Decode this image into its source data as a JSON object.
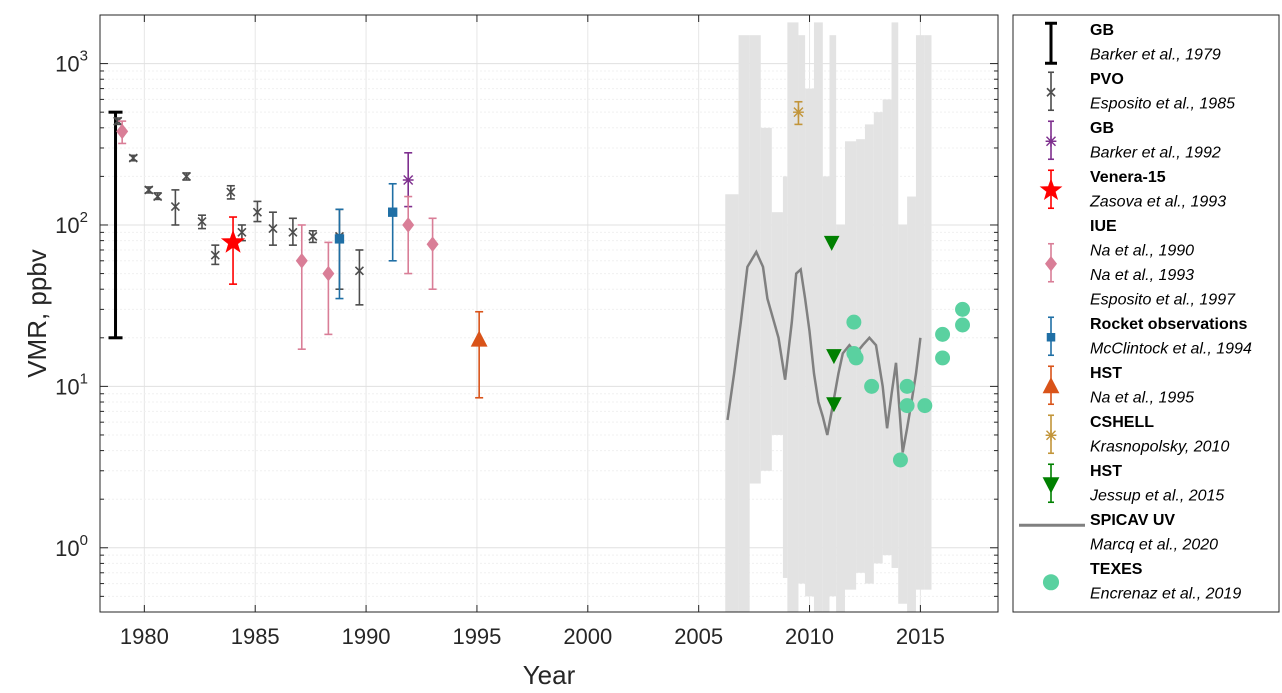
{
  "chart_data": {
    "type": "scatter",
    "xlabel": "Year",
    "ylabel": "VMR, ppbv",
    "xlim": [
      1978,
      2018.5
    ],
    "ylim": [
      0.4,
      2000
    ],
    "y_scale": "log",
    "grid": true,
    "legend_position": "outside-right",
    "x_ticks": [
      1980,
      1985,
      1990,
      1995,
      2000,
      2005,
      2010,
      2015
    ],
    "x_tick_labels": [
      "1980",
      "1985",
      "1990",
      "1995",
      "2000",
      "2005",
      "2010",
      "2015"
    ],
    "y_ticks": [
      {
        "value": 1,
        "base": "10",
        "exp": "0"
      },
      {
        "value": 10,
        "base": "10",
        "exp": "1"
      },
      {
        "value": 100,
        "base": "10",
        "exp": "2"
      },
      {
        "value": 1000,
        "base": "10",
        "exp": "3"
      }
    ],
    "series": [
      {
        "name": "GB",
        "reference": "Barker et al., 1979",
        "marker": "none",
        "color": "#000000",
        "points": [
          {
            "x": 1978.7,
            "y": 100,
            "lo": 20,
            "hi": 500
          }
        ]
      },
      {
        "name": "PVO",
        "reference": "Esposito et al., 1985",
        "marker": "x",
        "color": "#4d4d4d",
        "points": [
          {
            "x": 1978.8,
            "y": 440,
            "lo": 420,
            "hi": 460
          },
          {
            "x": 1979.5,
            "y": 260,
            "lo": 250,
            "hi": 270
          },
          {
            "x": 1980.2,
            "y": 165,
            "lo": 158,
            "hi": 172
          },
          {
            "x": 1980.6,
            "y": 150,
            "lo": 144,
            "hi": 158
          },
          {
            "x": 1981.4,
            "y": 130,
            "lo": 100,
            "hi": 165
          },
          {
            "x": 1981.9,
            "y": 200,
            "lo": 190,
            "hi": 210
          },
          {
            "x": 1982.6,
            "y": 105,
            "lo": 95,
            "hi": 115
          },
          {
            "x": 1983.2,
            "y": 65,
            "lo": 57,
            "hi": 75
          },
          {
            "x": 1983.9,
            "y": 160,
            "lo": 145,
            "hi": 175
          },
          {
            "x": 1984.4,
            "y": 90,
            "lo": 80,
            "hi": 100
          },
          {
            "x": 1985.1,
            "y": 120,
            "lo": 105,
            "hi": 140
          },
          {
            "x": 1985.8,
            "y": 95,
            "lo": 75,
            "hi": 120
          },
          {
            "x": 1986.7,
            "y": 90,
            "lo": 75,
            "hi": 110
          },
          {
            "x": 1987.6,
            "y": 85,
            "lo": 78,
            "hi": 92
          },
          {
            "x": 1988.8,
            "y": 85,
            "lo": 40,
            "hi": 125
          },
          {
            "x": 1989.7,
            "y": 52,
            "lo": 32,
            "hi": 70
          }
        ]
      },
      {
        "name": "GB",
        "reference": "Barker et al., 1992",
        "marker": "asterisk",
        "color": "#7e2f8e",
        "points": [
          {
            "x": 1991.9,
            "y": 190,
            "lo": 130,
            "hi": 280
          }
        ]
      },
      {
        "name": "Venera-15",
        "reference": "Zasova et al., 1993",
        "marker": "star",
        "color": "#ff0000",
        "points": [
          {
            "x": 1984.0,
            "y": 78,
            "lo": 43,
            "hi": 112
          }
        ]
      },
      {
        "name": "IUE",
        "references": [
          "Na et al., 1990",
          "Na et al., 1993",
          "Esposito et al., 1997"
        ],
        "marker": "diamond",
        "color": "#d97e97",
        "points": [
          {
            "x": 1979.0,
            "y": 380,
            "lo": 320,
            "hi": 440
          },
          {
            "x": 1987.1,
            "y": 60,
            "lo": 17,
            "hi": 100
          },
          {
            "x": 1988.3,
            "y": 50,
            "lo": 21,
            "hi": 78
          },
          {
            "x": 1991.9,
            "y": 100,
            "lo": 50,
            "hi": 150
          },
          {
            "x": 1993.0,
            "y": 76,
            "lo": 40,
            "hi": 110
          }
        ]
      },
      {
        "name": "Rocket observations",
        "reference": "McClintock et al., 1994",
        "marker": "square",
        "color": "#1f6fa5",
        "points": [
          {
            "x": 1988.8,
            "y": 82,
            "lo": 35,
            "hi": 125
          },
          {
            "x": 1991.2,
            "y": 120,
            "lo": 60,
            "hi": 180
          }
        ]
      },
      {
        "name": "HST",
        "reference": "Na et al., 1995",
        "marker": "triangle-up",
        "color": "#d95319",
        "points": [
          {
            "x": 1995.1,
            "y": 19.5,
            "lo": 8.5,
            "hi": 29
          }
        ]
      },
      {
        "name": "CSHELL",
        "reference": "Krasnopolsky, 2010",
        "marker": "asterisk",
        "color": "#c2953a",
        "points": [
          {
            "x": 2009.5,
            "y": 500,
            "lo": 420,
            "hi": 580
          }
        ]
      },
      {
        "name": "HST",
        "reference": "Jessup et al., 2015",
        "marker": "triangle-down",
        "color": "#008000",
        "points": [
          {
            "x": 2011.0,
            "y": 78
          },
          {
            "x": 2011.1,
            "y": 15.5
          },
          {
            "x": 2011.1,
            "y": 7.8
          }
        ]
      },
      {
        "name": "SPICAV UV",
        "reference": "Marcq et al., 2020",
        "marker": "line",
        "color": "#808080",
        "band_color": "#e3e3e3",
        "points": [
          {
            "x": 2006.3,
            "y": 6.2
          },
          {
            "x": 2006.6,
            "y": 12
          },
          {
            "x": 2006.9,
            "y": 25
          },
          {
            "x": 2007.2,
            "y": 55
          },
          {
            "x": 2007.6,
            "y": 68
          },
          {
            "x": 2007.9,
            "y": 55
          },
          {
            "x": 2008.1,
            "y": 35
          },
          {
            "x": 2008.4,
            "y": 25
          },
          {
            "x": 2008.6,
            "y": 20
          },
          {
            "x": 2008.9,
            "y": 11
          },
          {
            "x": 2009.2,
            "y": 25
          },
          {
            "x": 2009.4,
            "y": 50
          },
          {
            "x": 2009.6,
            "y": 53
          },
          {
            "x": 2009.8,
            "y": 35
          },
          {
            "x": 2010.0,
            "y": 22
          },
          {
            "x": 2010.2,
            "y": 12
          },
          {
            "x": 2010.4,
            "y": 8
          },
          {
            "x": 2010.6,
            "y": 6.5
          },
          {
            "x": 2010.8,
            "y": 5
          },
          {
            "x": 2011.0,
            "y": 7
          },
          {
            "x": 2011.3,
            "y": 12
          },
          {
            "x": 2011.5,
            "y": 16
          },
          {
            "x": 2011.8,
            "y": 18
          },
          {
            "x": 2012.1,
            "y": 16
          },
          {
            "x": 2012.4,
            "y": 18
          },
          {
            "x": 2012.7,
            "y": 20
          },
          {
            "x": 2013.0,
            "y": 18
          },
          {
            "x": 2013.3,
            "y": 10
          },
          {
            "x": 2013.5,
            "y": 5.5
          },
          {
            "x": 2013.7,
            "y": 9
          },
          {
            "x": 2013.9,
            "y": 14
          },
          {
            "x": 2014.1,
            "y": 6
          },
          {
            "x": 2014.2,
            "y": 3.9
          },
          {
            "x": 2014.4,
            "y": 5.5
          },
          {
            "x": 2014.6,
            "y": 8
          },
          {
            "x": 2014.8,
            "y": 12
          },
          {
            "x": 2015.0,
            "y": 20
          }
        ],
        "band": [
          {
            "x": 2006.2,
            "lo": 0.3,
            "hi": 155
          },
          {
            "x": 2006.8,
            "lo": 0.35,
            "hi": 1500
          },
          {
            "x": 2007.3,
            "lo": 2.5,
            "hi": 1500
          },
          {
            "x": 2007.8,
            "lo": 3,
            "hi": 400
          },
          {
            "x": 2008.3,
            "lo": 5,
            "hi": 120
          },
          {
            "x": 2008.8,
            "lo": 0.65,
            "hi": 200
          },
          {
            "x": 2009.0,
            "lo": 0.3,
            "hi": 1800
          },
          {
            "x": 2009.5,
            "lo": 0.6,
            "hi": 1500
          },
          {
            "x": 2009.8,
            "lo": 0.5,
            "hi": 700
          },
          {
            "x": 2010.2,
            "lo": 0.4,
            "hi": 1800
          },
          {
            "x": 2010.6,
            "lo": 0.3,
            "hi": 200
          },
          {
            "x": 2010.9,
            "lo": 0.5,
            "hi": 1500
          },
          {
            "x": 2011.2,
            "lo": 0.3,
            "hi": 100
          },
          {
            "x": 2011.6,
            "lo": 0.55,
            "hi": 330
          },
          {
            "x": 2012.1,
            "lo": 0.7,
            "hi": 340
          },
          {
            "x": 2012.5,
            "lo": 0.6,
            "hi": 420
          },
          {
            "x": 2012.9,
            "lo": 0.8,
            "hi": 500
          },
          {
            "x": 2013.3,
            "lo": 0.9,
            "hi": 600
          },
          {
            "x": 2013.7,
            "lo": 0.75,
            "hi": 1800
          },
          {
            "x": 2014.0,
            "lo": 0.45,
            "hi": 100
          },
          {
            "x": 2014.4,
            "lo": 0.3,
            "hi": 150
          },
          {
            "x": 2014.8,
            "lo": 0.55,
            "hi": 1500
          },
          {
            "x": 2015.2,
            "lo": 0.55,
            "hi": 1500
          }
        ]
      },
      {
        "name": "TEXES",
        "reference": "Encrenaz et al., 2019",
        "marker": "circle",
        "color": "#5ad1a0",
        "points": [
          {
            "x": 2012.0,
            "y": 25
          },
          {
            "x": 2012.0,
            "y": 16
          },
          {
            "x": 2012.1,
            "y": 15
          },
          {
            "x": 2012.8,
            "y": 10
          },
          {
            "x": 2014.1,
            "y": 3.5
          },
          {
            "x": 2014.4,
            "y": 10
          },
          {
            "x": 2014.4,
            "y": 7.6
          },
          {
            "x": 2015.2,
            "y": 7.6
          },
          {
            "x": 2016.0,
            "y": 21
          },
          {
            "x": 2016.0,
            "y": 15
          },
          {
            "x": 2016.9,
            "y": 30
          },
          {
            "x": 2016.9,
            "y": 24
          }
        ]
      }
    ],
    "legend": [
      {
        "name": "GB",
        "refs": [
          "Barker et al., 1979"
        ],
        "marker": "errorbar",
        "color": "#000000"
      },
      {
        "name": "PVO",
        "refs": [
          "Esposito et al., 1985"
        ],
        "marker": "x",
        "color": "#4d4d4d"
      },
      {
        "name": "GB",
        "refs": [
          "Barker et al., 1992"
        ],
        "marker": "asterisk",
        "color": "#7e2f8e"
      },
      {
        "name": "Venera-15",
        "refs": [
          "Zasova et al., 1993"
        ],
        "marker": "star",
        "color": "#ff0000"
      },
      {
        "name": "IUE",
        "refs": [
          "Na et al., 1990",
          "Na et al., 1993",
          "Esposito et al., 1997"
        ],
        "marker": "diamond",
        "color": "#d97e97"
      },
      {
        "name": "Rocket observations",
        "refs": [
          "McClintock et al., 1994"
        ],
        "marker": "square",
        "color": "#1f6fa5"
      },
      {
        "name": "HST",
        "refs": [
          "Na et al., 1995"
        ],
        "marker": "triangle-up",
        "color": "#d95319"
      },
      {
        "name": "CSHELL",
        "refs": [
          "Krasnopolsky, 2010"
        ],
        "marker": "asterisk",
        "color": "#c2953a"
      },
      {
        "name": "HST",
        "refs": [
          "Jessup et al., 2015"
        ],
        "marker": "triangle-down",
        "color": "#008000"
      },
      {
        "name": "SPICAV UV",
        "refs": [
          "Marcq et al., 2020"
        ],
        "marker": "line",
        "color": "#808080"
      },
      {
        "name": "TEXES",
        "refs": [
          "Encrenaz et al., 2019"
        ],
        "marker": "circle",
        "color": "#5ad1a0"
      }
    ]
  }
}
